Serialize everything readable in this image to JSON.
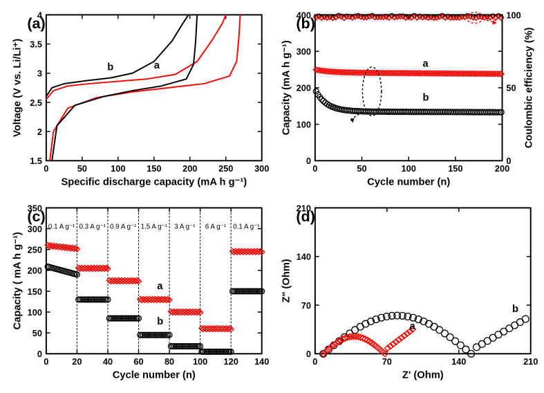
{
  "panels": {
    "a": {
      "letter": "(a)",
      "xlabel": "Specific discharge capacity (mA h g⁻¹)",
      "ylabel": "Voltage (V vs. Li/Li⁺)",
      "xlim": [
        0,
        300
      ],
      "xtick_step": 50,
      "ylim": [
        1.5,
        4.0
      ],
      "ytick_step": 0.5,
      "series": {
        "a_charge": {
          "color": "#ff0000",
          "label": "a",
          "pts": [
            [
              0,
              2.55
            ],
            [
              10,
              2.7
            ],
            [
              30,
              2.78
            ],
            [
              60,
              2.82
            ],
            [
              100,
              2.86
            ],
            [
              140,
              2.9
            ],
            [
              180,
              2.98
            ],
            [
              210,
              3.2
            ],
            [
              230,
              3.55
            ],
            [
              245,
              3.85
            ],
            [
              250,
              4.0
            ]
          ]
        },
        "a_discharge": {
          "color": "#ff0000",
          "pts": [
            [
              270,
              4.0
            ],
            [
              268,
              3.6
            ],
            [
              265,
              3.2
            ],
            [
              255,
              2.95
            ],
            [
              220,
              2.82
            ],
            [
              170,
              2.75
            ],
            [
              120,
              2.68
            ],
            [
              70,
              2.58
            ],
            [
              30,
              2.4
            ],
            [
              10,
              2.0
            ],
            [
              5,
              1.5
            ]
          ]
        },
        "b_charge": {
          "color": "#000000",
          "label": "b",
          "pts": [
            [
              0,
              2.6
            ],
            [
              8,
              2.75
            ],
            [
              25,
              2.82
            ],
            [
              55,
              2.87
            ],
            [
              90,
              2.92
            ],
            [
              120,
              3.0
            ],
            [
              150,
              3.2
            ],
            [
              175,
              3.55
            ],
            [
              190,
              3.85
            ],
            [
              198,
              4.0
            ]
          ]
        },
        "b_discharge": {
          "color": "#000000",
          "pts": [
            [
              210,
              4.0
            ],
            [
              208,
              3.55
            ],
            [
              205,
              3.15
            ],
            [
              195,
              2.9
            ],
            [
              160,
              2.78
            ],
            [
              120,
              2.7
            ],
            [
              80,
              2.6
            ],
            [
              40,
              2.45
            ],
            [
              15,
              2.1
            ],
            [
              8,
              1.5
            ]
          ]
        }
      },
      "inner_labels": {
        "a": [
          150,
          3.08
        ],
        "b": [
          85,
          3.05
        ]
      }
    },
    "b": {
      "letter": "(b)",
      "xlabel": "Cycle number (n)",
      "ylabel": "Capacity (mA h g⁻¹)",
      "y2label": "Coulombic efficiency (%)",
      "xlim": [
        0,
        200
      ],
      "xtick_step": 50,
      "ylim": [
        0,
        400
      ],
      "ytick_step": 100,
      "y2lim": [
        0,
        100
      ],
      "y2tick_step": 50,
      "series": {
        "eff_b": {
          "color": "#000000",
          "marker": "circle",
          "y": "right",
          "start": [
            1,
            92
          ],
          "end": [
            200,
            99.8
          ]
        },
        "eff_a": {
          "color": "#ff0000",
          "marker": "diamond",
          "y": "right",
          "start": [
            1,
            90
          ],
          "end": [
            200,
            99.5
          ]
        },
        "cap_a": {
          "color": "#ff0000",
          "marker": "diamond",
          "y": "left",
          "start": [
            1,
            250
          ],
          "mid": [
            20,
            242
          ],
          "end": [
            200,
            238
          ],
          "label": "a"
        },
        "cap_b": {
          "color": "#000000",
          "marker": "circle",
          "y": "left",
          "start": [
            1,
            195
          ],
          "mid": [
            25,
            140
          ],
          "end": [
            200,
            135
          ],
          "label": "b"
        }
      },
      "inner_labels": {
        "a": [
          115,
          258
        ],
        "b": [
          115,
          165
        ]
      },
      "arrow_left_at": [
        55,
        190
      ],
      "arrow_right_at": [
        175,
        362
      ]
    },
    "c": {
      "letter": "(c)",
      "xlabel": "Cycle number (n)",
      "ylabel": "Capacity ( mA h g⁻¹)",
      "xlim": [
        0,
        140
      ],
      "xtick_step": 20,
      "ylim": [
        0,
        350
      ],
      "ytick_step": 50,
      "rates": [
        "0.1 A g⁻¹",
        "0.3 A g⁻¹",
        "0.9 A g⁻¹",
        "1.5 A g⁻¹",
        "3 A g⁻¹",
        "6 A g⁻¹",
        "0.1 A g⁻¹"
      ],
      "rate_boundaries": [
        0,
        20,
        40,
        60,
        80,
        100,
        120,
        140
      ],
      "series_a": {
        "color": "#ff0000",
        "marker": "diamond",
        "segments": [
          260,
          205,
          175,
          130,
          100,
          60,
          245
        ],
        "label": "a"
      },
      "series_b": {
        "color": "#000000",
        "marker": "circle",
        "segments": [
          210,
          130,
          85,
          45,
          18,
          5,
          150
        ],
        "label": "b"
      },
      "inner_labels": {
        "a": [
          72,
          155
        ],
        "b": [
          72,
          70
        ]
      }
    },
    "d": {
      "letter": "(d)",
      "xlabel": "Z' (Ohm)",
      "ylabel": "Z\" (Ohm)",
      "xlim": [
        0,
        210
      ],
      "xtick_step": 70,
      "ylim": [
        0,
        210
      ],
      "ytick_step": 70,
      "series": {
        "a": {
          "color": "#ff0000",
          "marker": "diamond",
          "semicircle": {
            "x0": 8,
            "peak_x": 40,
            "peak_y": 25,
            "x1": 68
          },
          "tail_end": [
            95,
            35
          ],
          "label": "a"
        },
        "b": {
          "color": "#000000",
          "marker": "circle",
          "semicircle": {
            "x0": 8,
            "peak_x": 80,
            "peak_y": 55,
            "x1": 152
          },
          "tail_end": [
            205,
            50
          ],
          "label": "b"
        }
      },
      "inner_labels": {
        "a": [
          92,
          35
        ],
        "b": [
          192,
          60
        ]
      }
    }
  },
  "colors": {
    "red": "#ff0000",
    "black": "#000000",
    "bg": "#ffffff"
  },
  "marker_size": 4.0,
  "font": {
    "tick": 13,
    "axis": 15,
    "letter": 22,
    "inner": 15,
    "rate": 10
  }
}
